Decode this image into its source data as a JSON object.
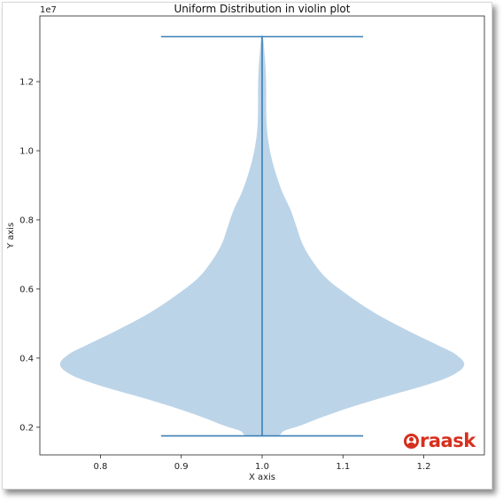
{
  "chart_data": {
    "type": "violin",
    "title": "Uniform Distribution in violin plot",
    "xlabel": "X axis",
    "ylabel": "Y axis",
    "y_offset_label": "1e7",
    "xlim": [
      0.725,
      1.275
    ],
    "ylim": [
      1200000.0,
      13900000.0
    ],
    "xticks": [
      0.8,
      0.9,
      1.0,
      1.1,
      1.2
    ],
    "xtick_labels": [
      "0.8",
      "0.9",
      "1.0",
      "1.1",
      "1.2"
    ],
    "yticks": [
      2000000.0,
      4000000.0,
      6000000.0,
      8000000.0,
      10000000.0,
      12000000.0
    ],
    "ytick_labels": [
      "0.2",
      "0.4",
      "0.6",
      "0.8",
      "1.0",
      "1.2"
    ],
    "grid": false,
    "violin": {
      "position": 1.0,
      "width": 0.5,
      "min": 1750000.0,
      "max": 13300000.0,
      "fill_color": "#bcd4e8",
      "stat_color": "#3a7fb5",
      "density_profile": [
        [
          1750000.0,
          0.07
        ],
        [
          1900000.0,
          0.11
        ],
        [
          2050000.0,
          0.19
        ],
        [
          2300000.0,
          0.3
        ],
        [
          2600000.0,
          0.45
        ],
        [
          2900000.0,
          0.62
        ],
        [
          3200000.0,
          0.8
        ],
        [
          3500000.0,
          0.94
        ],
        [
          3800000.0,
          1.0
        ],
        [
          4100000.0,
          0.96
        ],
        [
          4400000.0,
          0.86
        ],
        [
          4800000.0,
          0.72
        ],
        [
          5300000.0,
          0.56
        ],
        [
          5800000.0,
          0.43
        ],
        [
          6300000.0,
          0.32
        ],
        [
          6800000.0,
          0.25
        ],
        [
          7300000.0,
          0.2
        ],
        [
          7800000.0,
          0.17
        ],
        [
          8300000.0,
          0.14
        ],
        [
          8800000.0,
          0.1
        ],
        [
          9300000.0,
          0.07
        ],
        [
          9800000.0,
          0.046
        ],
        [
          10300000.0,
          0.03
        ],
        [
          10800000.0,
          0.022
        ],
        [
          11300000.0,
          0.02
        ],
        [
          11800000.0,
          0.02
        ],
        [
          12300000.0,
          0.018
        ],
        [
          12800000.0,
          0.012
        ],
        [
          13300000.0,
          0.004
        ]
      ]
    }
  },
  "watermark": {
    "text": "raask",
    "color": "#d6301e"
  }
}
